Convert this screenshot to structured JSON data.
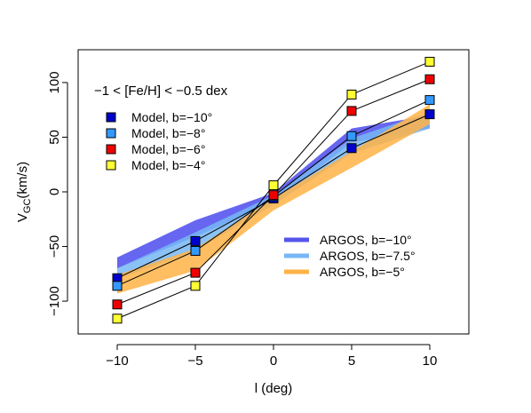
{
  "chart_data": {
    "type": "line",
    "title": "",
    "xlabel": "l (deg)",
    "ylabel": "V",
    "ylabel_subscript": "GC",
    "ylabel_suffix": "(km/s)",
    "annotation": "−1 < [Fe/H] < −0.5 dex",
    "xlim": [
      -12.5,
      12.5
    ],
    "ylim": [
      -130,
      130
    ],
    "xticks": [
      -10,
      -5,
      0,
      5,
      10
    ],
    "xtick_labels": [
      "−10",
      "−5",
      "0",
      "5",
      "10"
    ],
    "yticks": [
      -100,
      -50,
      0,
      50,
      100
    ],
    "ytick_labels": [
      "−100",
      "−50",
      "0",
      "50",
      "100"
    ],
    "grid": false,
    "x": [
      -10,
      -5,
      0,
      5,
      10
    ],
    "series": [
      {
        "name": "Model, b=−10°",
        "color": "#0000cc",
        "values": [
          -79,
          -45,
          -6,
          40,
          71
        ]
      },
      {
        "name": "Model, b=−8°",
        "color": "#3399ff",
        "values": [
          -86,
          -54,
          -4,
          51,
          84
        ]
      },
      {
        "name": "Model, b=−6°",
        "color": "#ee0000",
        "values": [
          -103,
          -74,
          -3,
          74,
          103
        ]
      },
      {
        "name": "Model, b=−4°",
        "color": "#ffff33",
        "values": [
          -116,
          -86,
          6,
          89,
          119
        ]
      }
    ],
    "bands": [
      {
        "name": "ARGOS, b=−10°",
        "color": "#5555ee",
        "x": [
          -10,
          -5,
          0,
          5,
          10
        ],
        "lower": [
          -70,
          -41,
          -10,
          45,
          58
        ],
        "upper": [
          -60,
          -26,
          -1,
          58,
          70
        ]
      },
      {
        "name": "ARGOS, b=−7.5°",
        "color": "#77b7f5",
        "x": [
          -10,
          -5,
          0,
          5,
          10
        ],
        "lower": [
          -80,
          -54,
          -12,
          35,
          58
        ],
        "upper": [
          -70,
          -37,
          -3,
          49,
          73
        ]
      },
      {
        "name": "ARGOS, b=−5°",
        "color": "#ffb347",
        "x": [
          -10,
          -5,
          0,
          5,
          10
        ],
        "lower": [
          -93,
          -72,
          -17,
          22,
          62
        ],
        "upper": [
          -76,
          -52,
          -6,
          37,
          80
        ]
      }
    ],
    "legend_placement": [
      "top-left",
      "bottom-right"
    ]
  }
}
